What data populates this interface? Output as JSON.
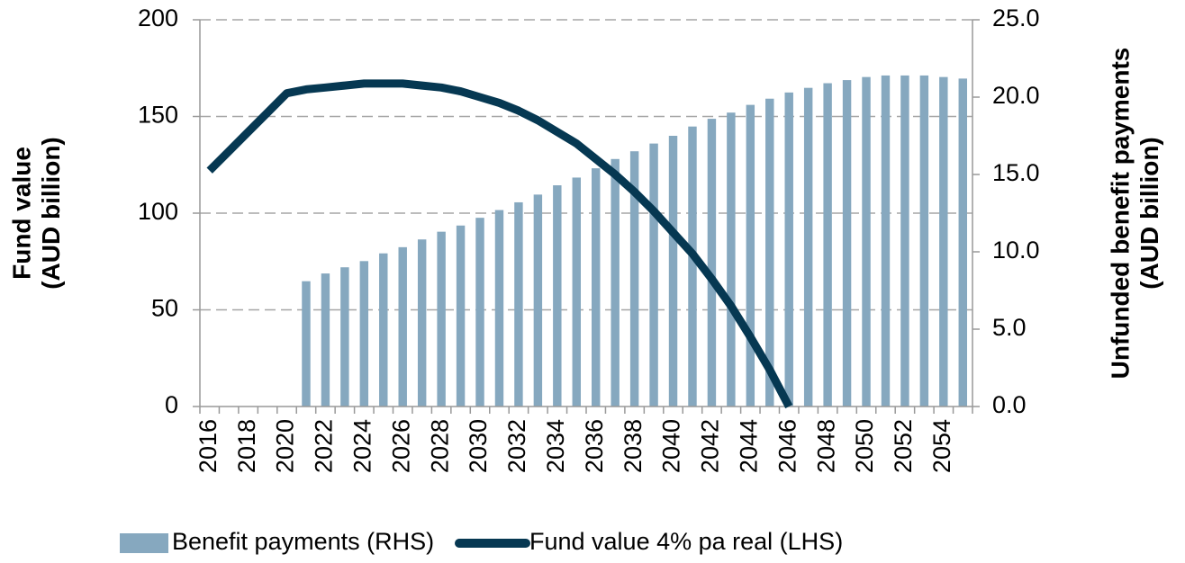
{
  "chart_data": {
    "type": "bar+line",
    "categories": [
      "2016",
      null,
      "2018",
      null,
      "2020",
      null,
      "2022",
      null,
      "2024",
      null,
      "2026",
      null,
      "2028",
      null,
      "2030",
      null,
      "2032",
      null,
      "2034",
      null,
      "2036",
      null,
      "2038",
      null,
      "2040",
      null,
      "2042",
      null,
      "2044",
      null,
      "2046",
      null,
      "2048",
      null,
      "2050",
      null,
      "2052",
      null,
      "2054",
      null
    ],
    "series": [
      {
        "name": "Benefit payments (RHS)",
        "type": "bar",
        "axis": "y2",
        "color": "#86a8bf",
        "values": [
          null,
          null,
          null,
          null,
          null,
          8.1,
          8.6,
          9.0,
          9.4,
          9.9,
          10.3,
          10.8,
          11.3,
          11.7,
          12.2,
          12.7,
          13.2,
          13.7,
          14.3,
          14.8,
          15.4,
          16.0,
          16.5,
          17.0,
          17.5,
          18.1,
          18.6,
          19.0,
          19.5,
          19.9,
          20.3,
          20.6,
          20.9,
          21.1,
          21.3,
          21.4,
          21.4,
          21.4,
          21.3,
          21.2
        ]
      },
      {
        "name": "Fund value 4% pa real (LHS)",
        "type": "line",
        "axis": "y",
        "color": "#063852",
        "values": [
          122,
          132,
          142,
          152,
          162,
          164,
          165,
          166,
          167,
          167,
          167,
          166,
          165,
          163,
          160,
          157,
          153,
          148,
          142,
          136,
          128,
          120,
          111,
          101,
          90,
          79,
          66,
          52,
          36,
          19,
          0,
          null,
          null,
          null,
          null,
          null,
          null,
          null,
          null,
          null
        ]
      }
    ],
    "ylabel": "Fund value\n(AUD billion)",
    "y2label": "Unfunded benefit payments\n(AUD billion)",
    "ylim": [
      0,
      200
    ],
    "yticks": [
      0,
      50,
      100,
      150,
      200
    ],
    "y2lim": [
      0,
      25
    ],
    "y2ticks": [
      {
        "value": 0,
        "label": "0.0"
      },
      {
        "value": 5,
        "label": "5.0"
      },
      {
        "value": 10,
        "label": "10.0"
      },
      {
        "value": 15,
        "label": "15.0"
      },
      {
        "value": 20,
        "label": "20.0"
      },
      {
        "value": 25,
        "label": "25.0"
      }
    ],
    "grid": true,
    "legend": "bottom"
  }
}
